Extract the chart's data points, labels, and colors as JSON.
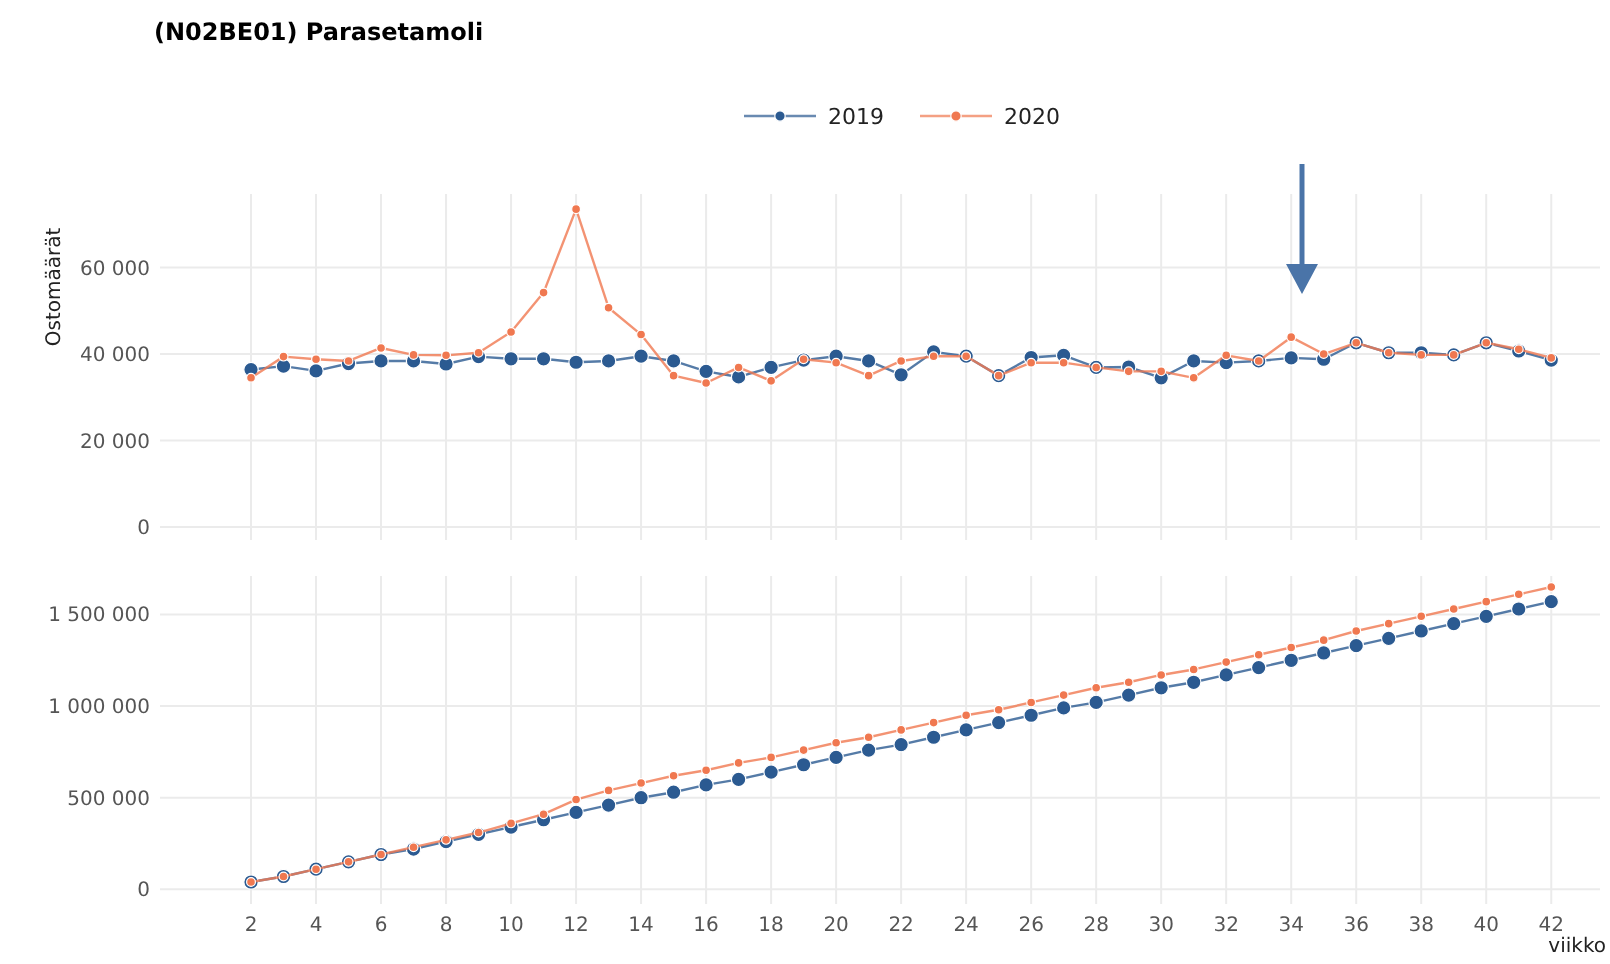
{
  "chart_data": [
    {
      "type": "line",
      "title": "(N02BE01) Parasetamoli",
      "ylabel": "Ostomäärät",
      "legend": "top",
      "grid": true,
      "marker": "circle",
      "line_style": "solid",
      "tick_labels": "y",
      "x": [
        2,
        3,
        4,
        5,
        6,
        7,
        8,
        9,
        10,
        11,
        12,
        13,
        14,
        15,
        16,
        17,
        18,
        19,
        20,
        21,
        22,
        23,
        24,
        25,
        26,
        27,
        28,
        29,
        30,
        31,
        32,
        33,
        34,
        35,
        36,
        37,
        38,
        39,
        40,
        41,
        42
      ],
      "xlim": [
        -0.8,
        43.5
      ],
      "xticks": [
        2,
        4,
        6,
        8,
        10,
        12,
        14,
        16,
        18,
        20,
        22,
        24,
        26,
        28,
        30,
        32,
        34,
        36,
        38,
        40,
        42
      ],
      "ylim": [
        -3000,
        77000
      ],
      "yticks": [
        0,
        {
          "value": 20000,
          "label": "20 000"
        },
        {
          "value": 40000,
          "label": "40 000"
        },
        {
          "value": 60000,
          "label": "60 000"
        }
      ],
      "series": [
        {
          "name": "2019",
          "color": "#2b5a91",
          "values": [
            36400,
            37200,
            36100,
            37800,
            38400,
            38400,
            37700,
            39400,
            38900,
            38900,
            38100,
            38400,
            39500,
            38400,
            36000,
            34700,
            36900,
            38600,
            39500,
            38400,
            35200,
            40500,
            39500,
            35000,
            39200,
            39700,
            36900,
            37000,
            34500,
            38400,
            38000,
            38400,
            39100,
            38800,
            42600,
            40300,
            40300,
            39800,
            42600,
            40700,
            38600
          ]
        },
        {
          "name": "2020",
          "color": "#f07850",
          "values": [
            34500,
            39400,
            38800,
            38400,
            41400,
            39800,
            39700,
            40300,
            45100,
            54200,
            73500,
            50700,
            44500,
            35000,
            33300,
            36900,
            33800,
            38800,
            38000,
            35000,
            38400,
            39500,
            39500,
            35000,
            38000,
            38000,
            36900,
            36000,
            36000,
            34500,
            39700,
            38400,
            43900,
            40000,
            42600,
            40300,
            39800,
            39800,
            42600,
            41100,
            39100
          ]
        }
      ]
    },
    {
      "type": "line",
      "xlabel": "viikko",
      "grid": true,
      "marker": "circle",
      "line_style": "solid",
      "x": [
        2,
        3,
        4,
        5,
        6,
        7,
        8,
        9,
        10,
        11,
        12,
        13,
        14,
        15,
        16,
        17,
        18,
        19,
        20,
        21,
        22,
        23,
        24,
        25,
        26,
        27,
        28,
        29,
        30,
        31,
        32,
        33,
        34,
        35,
        36,
        37,
        38,
        39,
        40,
        41,
        42
      ],
      "xlim": [
        -0.8,
        43.5
      ],
      "xticks": [
        2,
        4,
        6,
        8,
        10,
        12,
        14,
        16,
        18,
        20,
        22,
        24,
        26,
        28,
        30,
        32,
        34,
        36,
        38,
        40,
        42
      ],
      "ylim": [
        -80000,
        1710000
      ],
      "yticks": [
        0,
        {
          "value": 500000,
          "label": "500 000"
        },
        {
          "value": 1000000,
          "label": "1 000 000"
        },
        {
          "value": 1500000,
          "label": "1 500 000"
        }
      ],
      "series": [
        {
          "color": "#2b5a91",
          "values": [
            40000,
            70000,
            110000,
            150000,
            190000,
            220000,
            260000,
            300000,
            340000,
            380000,
            420000,
            460000,
            500000,
            530000,
            570000,
            600000,
            640000,
            680000,
            720000,
            760000,
            790000,
            830000,
            870000,
            910000,
            950000,
            990000,
            1020000,
            1060000,
            1100000,
            1130000,
            1170000,
            1210000,
            1250000,
            1290000,
            1330000,
            1370000,
            1410000,
            1450000,
            1490000,
            1530000,
            1570000
          ]
        },
        {
          "color": "#f07850",
          "values": [
            40000,
            70000,
            110000,
            150000,
            190000,
            230000,
            270000,
            310000,
            360000,
            410000,
            490000,
            540000,
            580000,
            620000,
            650000,
            690000,
            720000,
            760000,
            800000,
            830000,
            870000,
            910000,
            950000,
            980000,
            1020000,
            1060000,
            1100000,
            1130000,
            1170000,
            1200000,
            1240000,
            1280000,
            1320000,
            1360000,
            1410000,
            1450000,
            1490000,
            1530000,
            1570000,
            1610000,
            1650000
          ]
        }
      ]
    }
  ]
}
